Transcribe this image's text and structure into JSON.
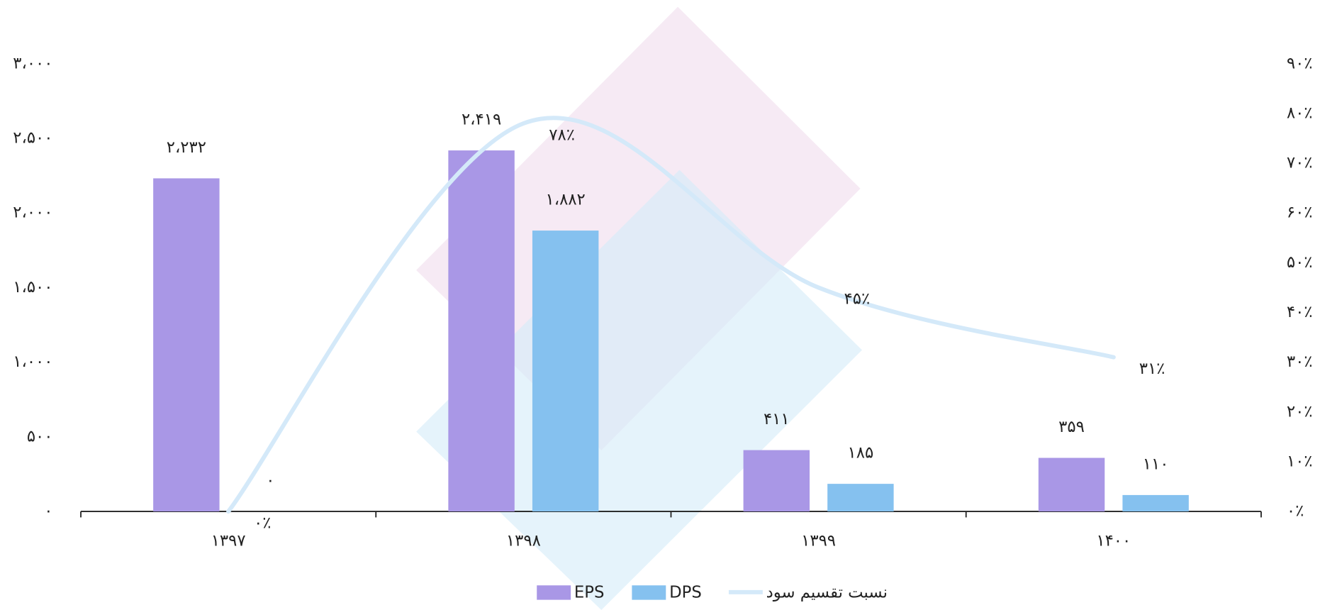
{
  "chart_data": {
    "type": "bar",
    "categories": [
      "۱۳۹۷",
      "۱۳۹۸",
      "۱۳۹۹",
      "۱۴۰۰"
    ],
    "series": [
      {
        "name": "EPS",
        "color": "#a997e6",
        "values": [
          2232,
          2419,
          411,
          359
        ],
        "value_labels": [
          "۲،۲۳۲",
          "۲،۴۱۹",
          "۴۱۱",
          "۳۵۹"
        ]
      },
      {
        "name": "DPS",
        "color": "#85c1ef",
        "values": [
          0,
          1882,
          185,
          110
        ],
        "value_labels": [
          "۰",
          "۱،۸۸۲",
          "۱۸۵",
          "۱۱۰"
        ]
      },
      {
        "name": "نسبت تقسیم سود",
        "type": "line",
        "axis": "y2",
        "color": "#d4e9f9",
        "values": [
          0,
          78,
          45,
          31
        ],
        "value_labels": [
          "۰٪",
          "۷۸٪",
          "۴۵٪",
          "۳۱٪"
        ]
      }
    ],
    "ylim": [
      0,
      3000
    ],
    "yticks": [
      {
        "value": 0,
        "label": "۰"
      },
      {
        "value": 500,
        "label": "۵۰۰"
      },
      {
        "value": 1000,
        "label": "۱،۰۰۰"
      },
      {
        "value": 1500,
        "label": "۱،۵۰۰"
      },
      {
        "value": 2000,
        "label": "۲،۰۰۰"
      },
      {
        "value": 2500,
        "label": "۲،۵۰۰"
      },
      {
        "value": 3000,
        "label": "۳،۰۰۰"
      }
    ],
    "y2lim": [
      0,
      90
    ],
    "y2ticks": [
      {
        "value": 0,
        "label": "۰٪"
      },
      {
        "value": 10,
        "label": "۱۰٪"
      },
      {
        "value": 20,
        "label": "۲۰٪"
      },
      {
        "value": 30,
        "label": "۳۰٪"
      },
      {
        "value": 40,
        "label": "۴۰٪"
      },
      {
        "value": 50,
        "label": "۵۰٪"
      },
      {
        "value": 60,
        "label": "۶۰٪"
      },
      {
        "value": 70,
        "label": "۷۰٪"
      },
      {
        "value": 80,
        "label": "۸۰٪"
      },
      {
        "value": 90,
        "label": "۹۰٪"
      }
    ],
    "grid": false,
    "legend": "bottom"
  }
}
